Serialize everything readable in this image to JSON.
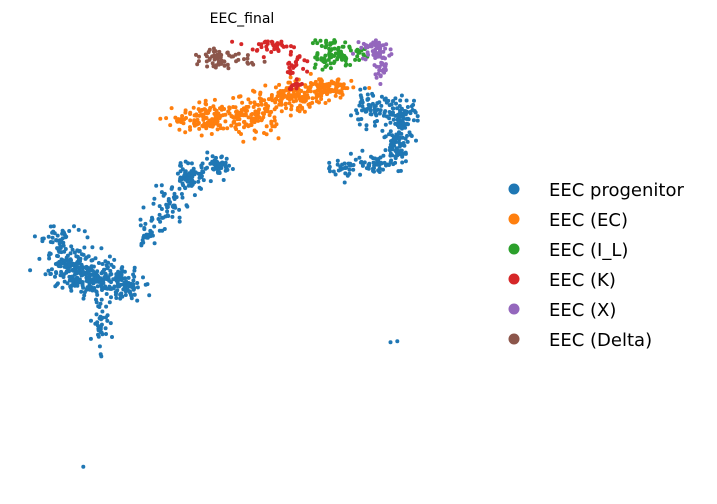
{
  "chart_data": {
    "type": "scatter",
    "title": "EEC_final",
    "xlabel": "",
    "ylabel": "",
    "grid": false,
    "axes_visible": false,
    "legend_placement": "right",
    "xlim": [
      0,
      100
    ],
    "ylim": [
      0,
      100
    ],
    "series": [
      {
        "name": "EEC progenitor",
        "color": "#1f77b4",
        "clusters": [
          {
            "cx": 12,
            "cy": 48,
            "sx": 3.0,
            "sy": 2.4,
            "n": 160
          },
          {
            "cx": 17,
            "cy": 46,
            "sx": 2.8,
            "sy": 2.0,
            "n": 120
          },
          {
            "cx": 23,
            "cy": 44,
            "sx": 2.2,
            "sy": 1.8,
            "n": 80
          },
          {
            "cx": 18,
            "cy": 36,
            "sx": 0.9,
            "sy": 3.0,
            "n": 40
          },
          {
            "cx": 8,
            "cy": 55,
            "sx": 2.2,
            "sy": 1.6,
            "n": 40
          },
          {
            "cx": 28,
            "cy": 56,
            "sx": 1.4,
            "sy": 2.0,
            "n": 30
          },
          {
            "cx": 33,
            "cy": 62,
            "sx": 1.6,
            "sy": 2.2,
            "n": 50
          },
          {
            "cx": 38,
            "cy": 69,
            "sx": 1.6,
            "sy": 1.6,
            "n": 70
          },
          {
            "cx": 44,
            "cy": 71,
            "sx": 1.6,
            "sy": 1.2,
            "n": 50
          },
          {
            "cx": 78,
            "cy": 84,
            "sx": 2.4,
            "sy": 1.8,
            "n": 70
          },
          {
            "cx": 85,
            "cy": 82,
            "sx": 1.6,
            "sy": 2.4,
            "n": 90
          },
          {
            "cx": 84,
            "cy": 76,
            "sx": 1.6,
            "sy": 2.2,
            "n": 60
          },
          {
            "cx": 79,
            "cy": 72,
            "sx": 2.6,
            "sy": 1.0,
            "n": 50
          },
          {
            "cx": 72,
            "cy": 71,
            "sx": 2.0,
            "sy": 1.0,
            "n": 30
          },
          {
            "cx": 14,
            "cy": 3,
            "sx": 0.1,
            "sy": 0.1,
            "n": 1
          },
          {
            "cx": 83,
            "cy": 32,
            "sx": 0.5,
            "sy": 0.4,
            "n": 2
          }
        ]
      },
      {
        "name": "EEC (EC)",
        "color": "#ff7f0e",
        "clusters": [
          {
            "cx": 42,
            "cy": 82,
            "sx": 4.0,
            "sy": 1.6,
            "n": 140
          },
          {
            "cx": 52,
            "cy": 83,
            "sx": 3.0,
            "sy": 2.2,
            "n": 120
          },
          {
            "cx": 61,
            "cy": 87,
            "sx": 3.0,
            "sy": 1.6,
            "n": 130
          },
          {
            "cx": 69,
            "cy": 89,
            "sx": 2.4,
            "sy": 1.2,
            "n": 90
          }
        ]
      },
      {
        "name": "EEC (I_L)",
        "color": "#2ca02c",
        "clusters": [
          {
            "cx": 60,
            "cy": 107,
            "sx": 1.4,
            "sy": 0.8,
            "n": 40
          },
          {
            "cx": 64,
            "cy": 104,
            "sx": 2.0,
            "sy": 1.4,
            "n": 60
          },
          {
            "cx": 69,
            "cy": 101,
            "sx": 2.0,
            "sy": 1.4,
            "n": 50
          },
          {
            "cx": 72,
            "cy": 97,
            "sx": 2.4,
            "sy": 1.4,
            "n": 60
          },
          {
            "cx": 67,
            "cy": 95,
            "sx": 1.6,
            "sy": 1.2,
            "n": 20
          }
        ]
      },
      {
        "name": "EEC (K)",
        "color": "#d62728",
        "clusters": [
          {
            "cx": 50,
            "cy": 102,
            "sx": 2.4,
            "sy": 1.0,
            "n": 50
          },
          {
            "cx": 56,
            "cy": 99,
            "sx": 2.2,
            "sy": 1.2,
            "n": 50
          },
          {
            "cx": 61,
            "cy": 95,
            "sx": 1.6,
            "sy": 1.4,
            "n": 25
          },
          {
            "cx": 61,
            "cy": 90,
            "sx": 0.8,
            "sy": 0.8,
            "n": 12
          }
        ]
      },
      {
        "name": "EEC (X)",
        "color": "#9467bd",
        "clusters": [
          {
            "cx": 79,
            "cy": 98,
            "sx": 1.6,
            "sy": 1.2,
            "n": 50
          },
          {
            "cx": 80,
            "cy": 94,
            "sx": 1.2,
            "sy": 1.4,
            "n": 30
          }
        ]
      },
      {
        "name": "EEC (Delta)",
        "color": "#8c564b",
        "clusters": [
          {
            "cx": 44,
            "cy": 96,
            "sx": 1.8,
            "sy": 1.2,
            "n": 50
          },
          {
            "cx": 50,
            "cy": 96,
            "sx": 1.6,
            "sy": 0.8,
            "n": 12
          }
        ]
      }
    ]
  }
}
